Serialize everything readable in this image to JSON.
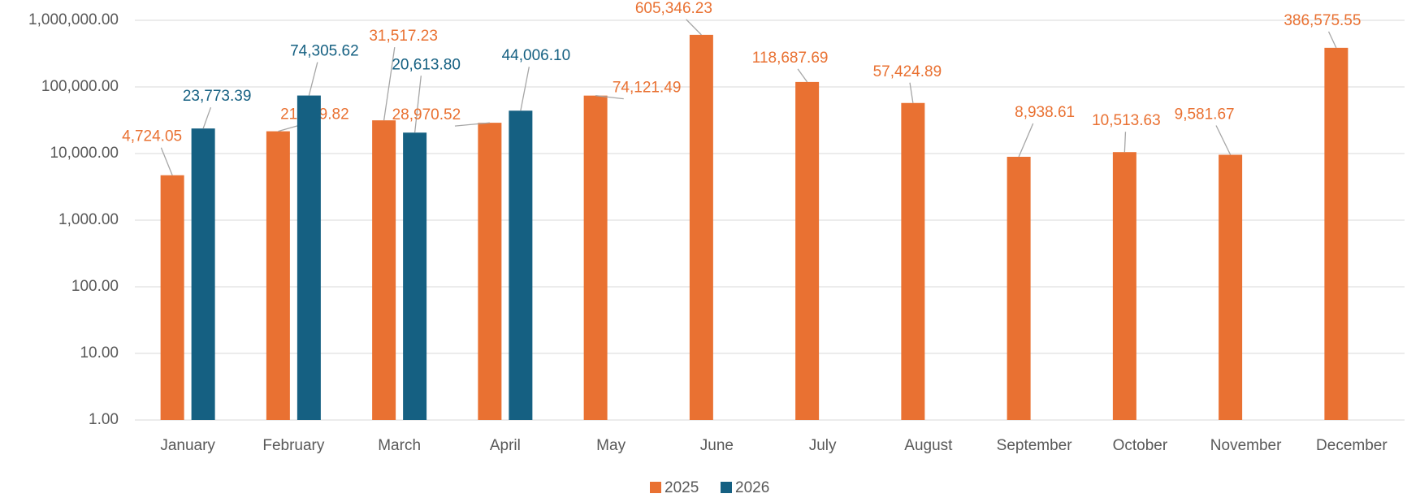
{
  "chart_data": {
    "type": "bar",
    "log_scale": true,
    "grid": true,
    "legend": "bottom",
    "categories": [
      "January",
      "February",
      "March",
      "April",
      "May",
      "June",
      "July",
      "August",
      "September",
      "October",
      "November",
      "December"
    ],
    "series": [
      {
        "name": "2025",
        "color": "#e97132",
        "values": [
          4724.05,
          21589.82,
          31517.23,
          28970.52,
          74121.49,
          605346.23,
          118687.69,
          57424.89,
          8938.61,
          10513.63,
          9581.67,
          386575.55
        ],
        "value_labels": [
          "4,724.05",
          "21,589.82",
          "31,517.23",
          "28,970.52",
          "74,121.49",
          "605,346.23",
          "118,687.69",
          "57,424.89",
          "8,938.61",
          "10,513.63",
          "9,581.67",
          "386,575.55"
        ]
      },
      {
        "name": "2026",
        "color": "#156082",
        "values": [
          23773.39,
          74305.62,
          20613.8,
          44006.1,
          null,
          null,
          null,
          null,
          null,
          null,
          null,
          null
        ],
        "value_labels": [
          "23,773.39",
          "74,305.62",
          "20,613.80",
          "44,006.10",
          null,
          null,
          null,
          null,
          null,
          null,
          null,
          null
        ]
      }
    ],
    "ylim": [
      1,
      1000000
    ],
    "yticks": [
      {
        "value": 1,
        "label": "1.00"
      },
      {
        "value": 10,
        "label": "10.00"
      },
      {
        "value": 100,
        "label": "100.00"
      },
      {
        "value": 1000,
        "label": "1,000.00"
      },
      {
        "value": 10000,
        "label": "10,000.00"
      },
      {
        "value": 100000,
        "label": "100,000.00"
      },
      {
        "value": 1000000,
        "label": "1,000,000.00"
      }
    ]
  }
}
